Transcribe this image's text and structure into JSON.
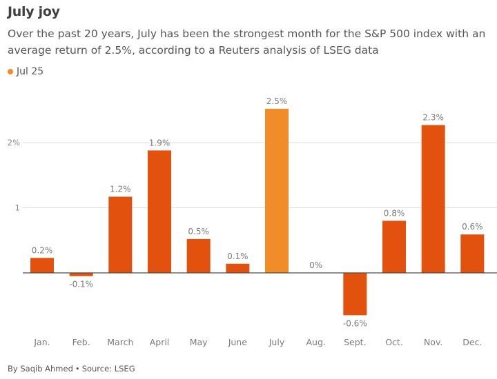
{
  "header": {
    "title": "July joy",
    "subtitle": "Over the past 20 years, July has been the strongest month for the S&P 500 index with an average return of 2.5%, according to a Reuters analysis of LSEG data"
  },
  "legend": {
    "label": "Jul 25",
    "color": "#f28c28"
  },
  "footer": {
    "byline": "By Saqib Ahmed",
    "separator": "•",
    "source": "Source: LSEG"
  },
  "chart_data": {
    "type": "bar",
    "categories": [
      "Jan.",
      "Feb.",
      "March",
      "April",
      "May",
      "June",
      "July",
      "Aug.",
      "Sept.",
      "Oct.",
      "Nov.",
      "Dec."
    ],
    "values": [
      0.23,
      -0.05,
      1.17,
      1.88,
      0.52,
      0.14,
      2.52,
      0.0,
      -0.65,
      0.8,
      2.27,
      0.59
    ],
    "data_labels": [
      "0.2%",
      "-0.1%",
      "1.2%",
      "1.9%",
      "0.5%",
      "0.1%",
      "2.5%",
      "0%",
      "-0.6%",
      "0.8%",
      "2.3%",
      "0.6%"
    ],
    "highlight_index": 6,
    "colors": {
      "default": "#e2520e",
      "highlight": "#f28c28",
      "grid": "#dcdcdc",
      "zero": "#4a4a4a"
    },
    "yticks": [
      1,
      2
    ],
    "ytick_labels": [
      "1",
      "2%"
    ],
    "ylim": [
      -0.9,
      2.9
    ],
    "grid": true
  }
}
